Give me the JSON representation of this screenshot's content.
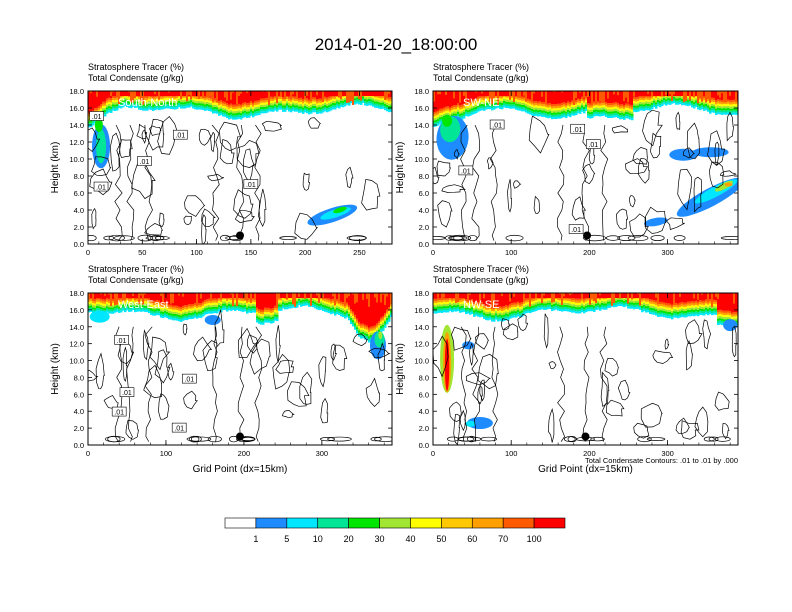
{
  "figure": {
    "title": "2014-01-20_18:00:00",
    "contour_note": "Total Condensate Contours: .01 to .01 by .000"
  },
  "chart_data": {
    "type": "heatmap",
    "title": "2014-01-20_18:00:00",
    "shared": {
      "label_top": "Stratosphere Tracer   (%)",
      "label_bottom": "Total Condensate   (g/kg)",
      "ylabel": "Height (km)",
      "xlabel": "Grid Point (dx=15km)",
      "ylim": [
        0,
        18
      ],
      "yticks": [
        "0.0",
        "2.0",
        "4.0",
        "6.0",
        "8.0",
        "10.0",
        "12.0",
        "14.0",
        "16.0",
        "18.0"
      ]
    },
    "panels": [
      {
        "name": "South-North",
        "xlim": [
          0,
          280
        ],
        "xticks": [
          0,
          50,
          100,
          150,
          200,
          250
        ],
        "marker_x": 140,
        "marker_y": 1.0,
        "contour_labels": [
          {
            "text": ".01",
            "x": 8,
            "y": 15.0
          },
          {
            "text": ".01",
            "x": 85,
            "y": 12.8
          },
          {
            "text": ".01",
            "x": 52,
            "y": 9.7
          },
          {
            "text": ".01",
            "x": 12,
            "y": 6.7
          },
          {
            "text": ".01",
            "x": 150,
            "y": 7.0
          }
        ]
      },
      {
        "name": "SW-NE",
        "xlim": [
          0,
          390
        ],
        "xticks": [
          0,
          100,
          200,
          300
        ],
        "marker_x": 197,
        "marker_y": 1.0,
        "contour_labels": [
          {
            "text": ".01",
            "x": 82,
            "y": 14.0
          },
          {
            "text": ".01",
            "x": 185,
            "y": 13.5
          },
          {
            "text": ".01",
            "x": 205,
            "y": 11.7
          },
          {
            "text": ".01",
            "x": 42,
            "y": 8.6
          },
          {
            "text": ".01",
            "x": 183,
            "y": 1.7
          }
        ]
      },
      {
        "name": "West-East",
        "xlim": [
          0,
          390
        ],
        "xticks": [
          0,
          100,
          200,
          300
        ],
        "marker_x": 195,
        "marker_y": 1.0,
        "contour_labels": [
          {
            "text": ".01",
            "x": 43,
            "y": 12.4
          },
          {
            "text": ".01",
            "x": 130,
            "y": 7.8
          },
          {
            "text": ".01",
            "x": 50,
            "y": 6.2
          },
          {
            "text": ".01",
            "x": 40,
            "y": 3.9
          },
          {
            "text": ".01",
            "x": 117,
            "y": 2.0
          }
        ]
      },
      {
        "name": "NW-SE",
        "xlim": [
          0,
          390
        ],
        "xticks": [
          0,
          100,
          200,
          300
        ],
        "marker_x": 195,
        "marker_y": 1.0,
        "contour_labels": []
      }
    ],
    "colorbar": {
      "levels": [
        "1",
        "5",
        "10",
        "20",
        "30",
        "40",
        "50",
        "60",
        "70",
        "100"
      ],
      "colors": [
        "#ffffff",
        "#1e8cff",
        "#00e6ff",
        "#00e696",
        "#00e600",
        "#a0e632",
        "#ffff00",
        "#ffc800",
        "#ffa000",
        "#ff5a00",
        "#ff0000"
      ]
    }
  }
}
